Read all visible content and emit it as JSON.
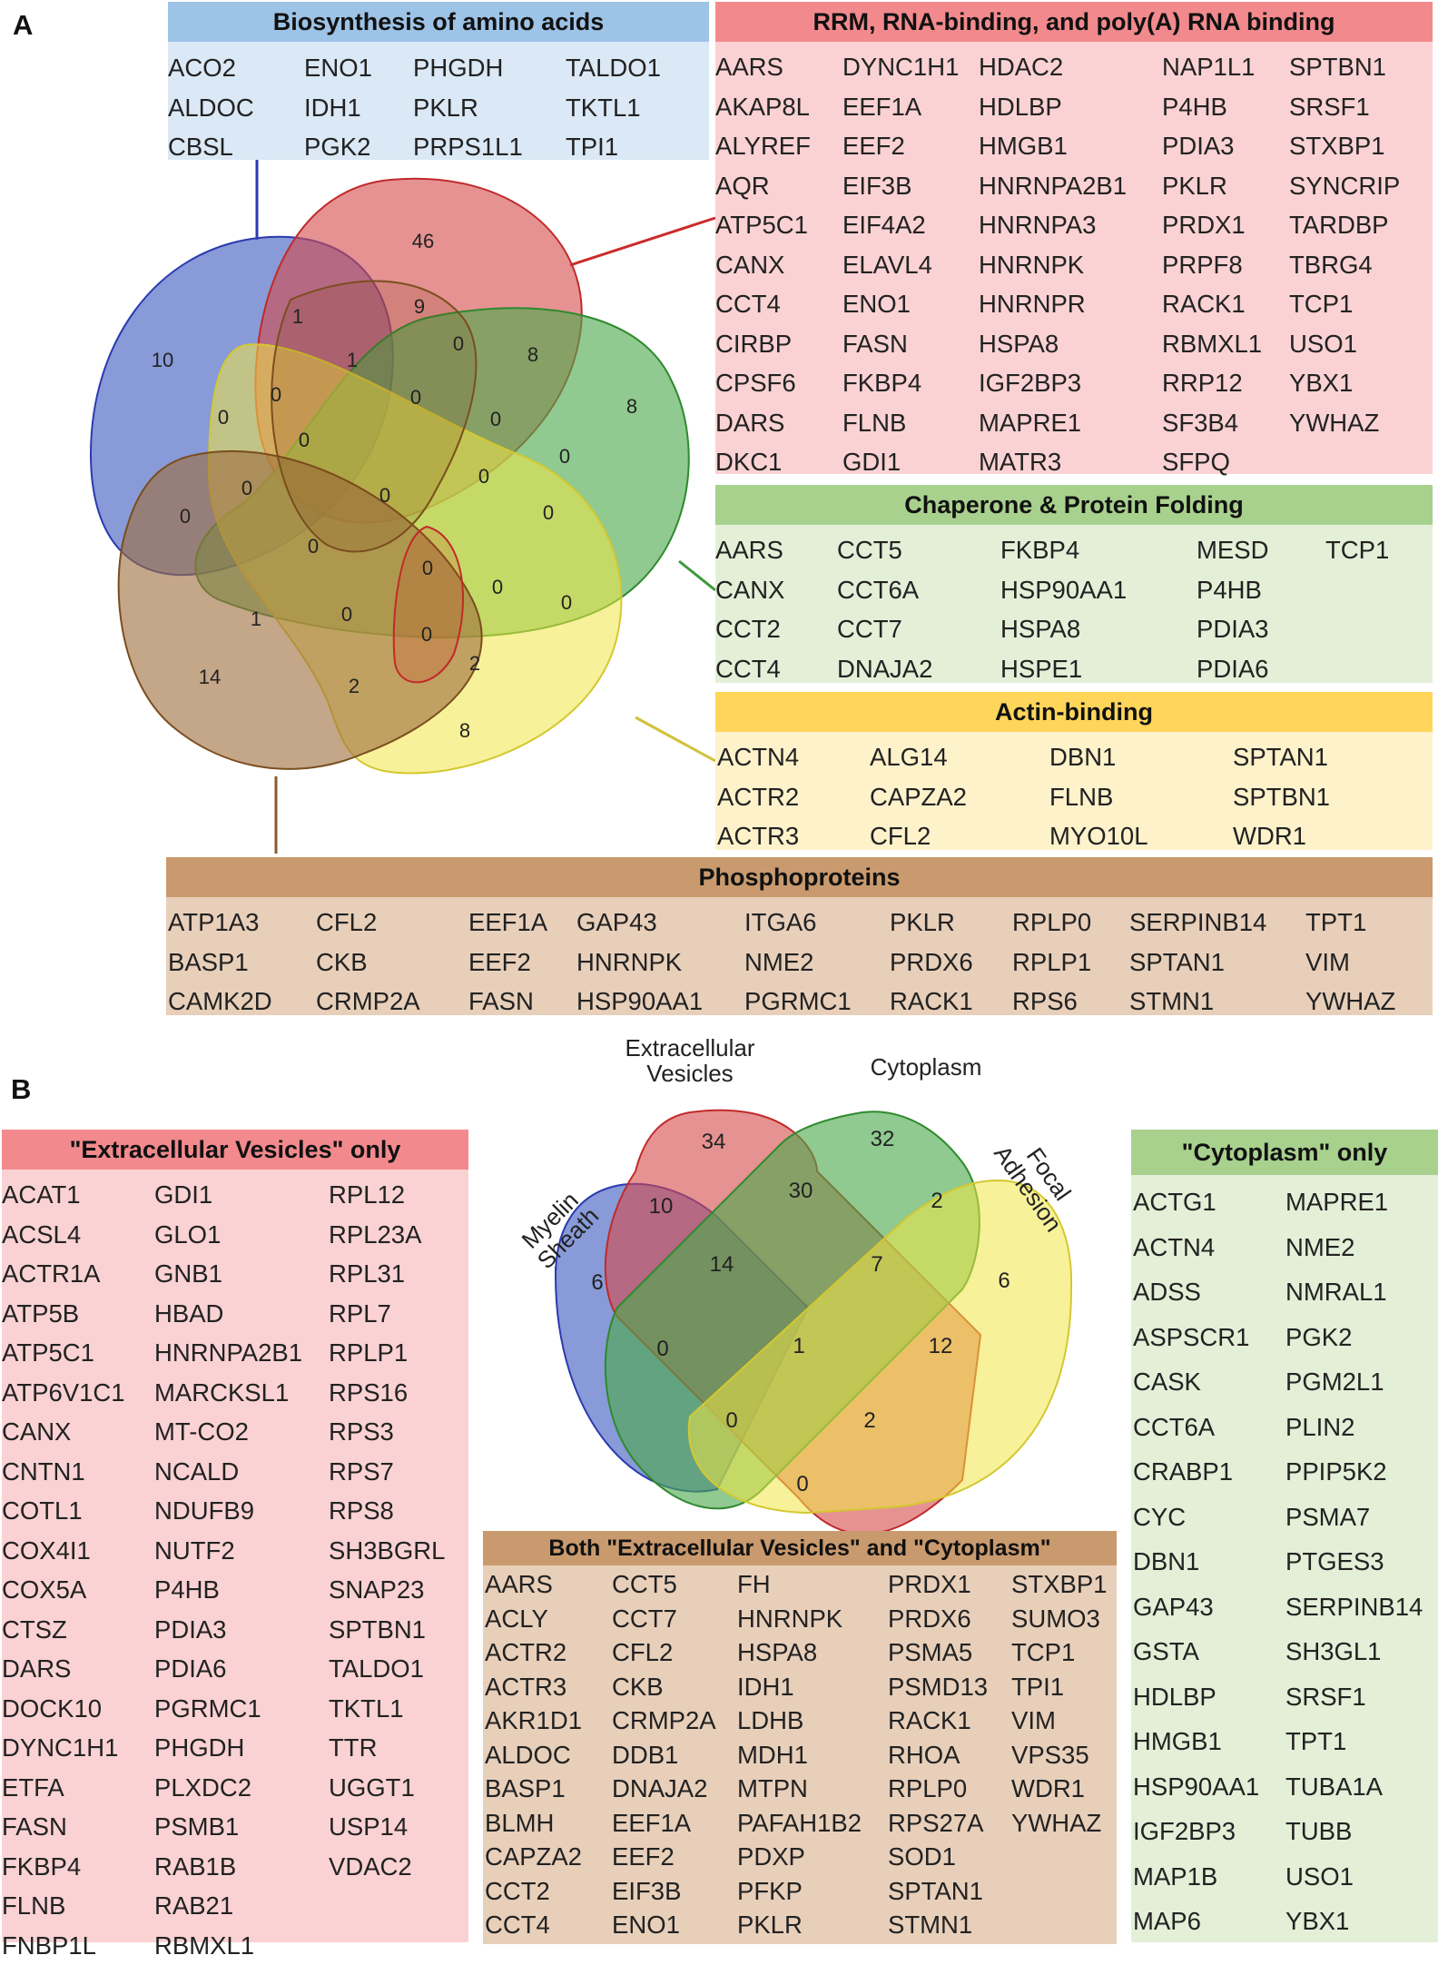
{
  "panel_labels": {
    "a": "A",
    "b": "B"
  },
  "panel_a": {
    "categories": [
      {
        "key": "amino",
        "title": "Biosynthesis of amino acids",
        "color": "#4472c4",
        "columns": [
          [
            "ACO2",
            "ALDOC",
            "CBSL"
          ],
          [
            "ENO1",
            "IDH1",
            "PGK2"
          ],
          [
            "PHGDH",
            "PKLR",
            "PRPS1L1"
          ],
          [
            "TALDO1",
            "TKTL1",
            "TPI1"
          ]
        ]
      },
      {
        "key": "rrm",
        "title": "RRM, RNA-binding, and poly(A) RNA binding",
        "color": "#d9534f",
        "columns": [
          [
            "AARS",
            "AKAP8L",
            "ALYREF",
            "AQR",
            "ATP5C1",
            "CANX",
            "CCT4",
            "CIRBP",
            "CPSF6",
            "DARS",
            "DKC1"
          ],
          [
            "DYNC1H1",
            "EEF1A",
            "EEF2",
            "EIF3B",
            "EIF4A2",
            "ELAVL4",
            "ENO1",
            "FASN",
            "FKBP4",
            "FLNB",
            "GDI1"
          ],
          [
            "HDAC2",
            "HDLBP",
            "HMGB1",
            "HNRNPA2B1",
            "HNRNPA3",
            "HNRNPK",
            "HNRNPR",
            "HSPA8",
            "IGF2BP3",
            "MAPRE1",
            "MATR3"
          ],
          [
            "NAP1L1",
            "P4HB",
            "PDIA3",
            "PKLR",
            "PRDX1",
            "PRPF8",
            "RACK1",
            "RBMXL1",
            "RRP12",
            "SF3B4",
            "SFPQ"
          ],
          [
            "SPTBN1",
            "SRSF1",
            "STXBP1",
            "SYNCRIP",
            "TARDBP",
            "TBRG4",
            "TCP1",
            "USO1",
            "YBX1",
            "YWHAZ"
          ]
        ]
      },
      {
        "key": "chaperone",
        "title": "Chaperone & Protein Folding",
        "color": "#5cb85c",
        "columns": [
          [
            "AARS",
            "CANX",
            "CCT2",
            "CCT4"
          ],
          [
            "CCT5",
            "CCT6A",
            "CCT7",
            "DNAJA2"
          ],
          [
            "FKBP4",
            "HSP90AA1",
            "HSPA8",
            "HSPE1"
          ],
          [
            "MESD",
            "P4HB",
            "PDIA3",
            "PDIA6"
          ],
          [
            "TCP1"
          ]
        ]
      },
      {
        "key": "actin",
        "title": "Actin-binding",
        "color": "#f0d43a",
        "columns": [
          [
            "ACTN4",
            "ACTR2",
            "ACTR3"
          ],
          [
            "ALG14",
            "CAPZA2",
            "CFL2"
          ],
          [
            "DBN1",
            "FLNB",
            "MYO10L"
          ],
          [
            "SPTAN1",
            "SPTBN1",
            "WDR1"
          ]
        ]
      },
      {
        "key": "phospho",
        "title": "Phosphoproteins",
        "color": "#a0703f",
        "columns": [
          [
            "ATP1A3",
            "BASP1",
            "CAMK2D"
          ],
          [
            "CFL2",
            "CKB",
            "CRMP2A"
          ],
          [
            "EEF1A",
            "EEF2",
            "FASN"
          ],
          [
            "GAP43",
            "HNRNPK",
            "HSP90AA1"
          ],
          [
            "ITGA6",
            "NME2",
            "PGRMC1"
          ],
          [
            "PKLR",
            "PRDX6",
            "RACK1"
          ],
          [
            "RPLP0",
            "RPLP1",
            "RPS6"
          ],
          [
            "SERPINB14",
            "SPTAN1",
            "STMN1"
          ],
          [
            "TPT1",
            "VIM",
            "YWHAZ"
          ]
        ]
      }
    ],
    "venn_counts": [
      "46",
      "10",
      "8",
      "8",
      "14",
      "1",
      "9",
      "0",
      "8",
      "1",
      "0",
      "0",
      "0",
      "0",
      "0",
      "0",
      "0",
      "0",
      "0",
      "0",
      "0",
      "0",
      "0",
      "0",
      "0",
      "1",
      "0",
      "0",
      "2",
      "2",
      "0"
    ]
  },
  "panel_b": {
    "venn_labels": {
      "myelin": "Myelin\nSheath",
      "ev": "Extracellular\nVesicles",
      "cyto": "Cytoplasm",
      "focal": "Focal\nAdhesion"
    },
    "venn_counts": [
      "34",
      "32",
      "6",
      "6",
      "10",
      "30",
      "2",
      "14",
      "7",
      "0",
      "1",
      "12",
      "0",
      "2",
      "0"
    ],
    "ev_only": {
      "title": "\"Extracellular Vesicles\" only",
      "columns": [
        [
          "ACAT1",
          "ACSL4",
          "ACTR1A",
          "ATP5B",
          "ATP5C1",
          "ATP6V1C1",
          "CANX",
          "CNTN1",
          "COTL1",
          "COX4I1",
          "COX5A",
          "CTSZ",
          "DARS",
          "DOCK10",
          "DYNC1H1",
          "ETFA",
          "FASN",
          "FKBP4",
          "FLNB",
          "FNBP1L"
        ],
        [
          "GDI1",
          "GLO1",
          "GNB1",
          "HBAD",
          "HNRNPA2B1",
          "MARCKSL1",
          "MT-CO2",
          "NCALD",
          "NDUFB9",
          "NUTF2",
          "P4HB",
          "PDIA3",
          "PDIA6",
          "PGRMC1",
          "PHGDH",
          "PLXDC2",
          "PSMB1",
          "RAB1B",
          "RAB21",
          "RBMXL1"
        ],
        [
          "RPL12",
          "RPL23A",
          "RPL31",
          "RPL7",
          "RPLP1",
          "RPS16",
          "RPS3",
          "RPS7",
          "RPS8",
          "SH3BGRL",
          "SNAP23",
          "SPTBN1",
          "TALDO1",
          "TKTL1",
          "TTR",
          "UGGT1",
          "USP14",
          "VDAC2"
        ]
      ]
    },
    "both": {
      "title": "Both \"Extracellular Vesicles\" and \"Cytoplasm\"",
      "columns": [
        [
          "AARS",
          "ACLY",
          "ACTR2",
          "ACTR3",
          "AKR1D1",
          "ALDOC",
          "BASP1",
          "BLMH",
          "CAPZA2",
          "CCT2",
          "CCT4"
        ],
        [
          "CCT5",
          "CCT7",
          "CFL2",
          "CKB",
          "CRMP2A",
          "DDB1",
          "DNAJA2",
          "EEF1A",
          "EEF2",
          "EIF3B",
          "ENO1"
        ],
        [
          "FH",
          "HNRNPK",
          "HSPA8",
          "IDH1",
          "LDHB",
          "MDH1",
          "MTPN",
          "PAFAH1B2",
          "PDXP",
          "PFKP",
          "PKLR"
        ],
        [
          "PRDX1",
          "PRDX6",
          "PSMA5",
          "PSMD13",
          "RACK1",
          "RHOA",
          "RPLP0",
          "RPS27A",
          "SOD1",
          "SPTAN1",
          "STMN1"
        ],
        [
          "STXBP1",
          "SUMO3",
          "TCP1",
          "TPI1",
          "VIM",
          "VPS35",
          "WDR1",
          "YWHAZ"
        ]
      ]
    },
    "cyto_only": {
      "title": "\"Cytoplasm\" only",
      "columns": [
        [
          "ACTG1",
          "ACTN4",
          "ADSS",
          "ASPSCR1",
          "CASK",
          "CCT6A",
          "CRABP1",
          "CYC",
          "DBN1",
          "GAP43",
          "GSTA",
          "HDLBP",
          "HMGB1",
          "HSP90AA1",
          "IGF2BP3",
          "MAP1B",
          "MAP6"
        ],
        [
          "MAPRE1",
          "NME2",
          "NMRAL1",
          "PGK2",
          "PGM2L1",
          "PLIN2",
          "PPIP5K2",
          "PSMA7",
          "PTGES3",
          "SERPINB14",
          "SH3GL1",
          "SRSF1",
          "TPT1",
          "TUBA1A",
          "TUBB",
          "USO1",
          "YBX1"
        ]
      ]
    }
  }
}
